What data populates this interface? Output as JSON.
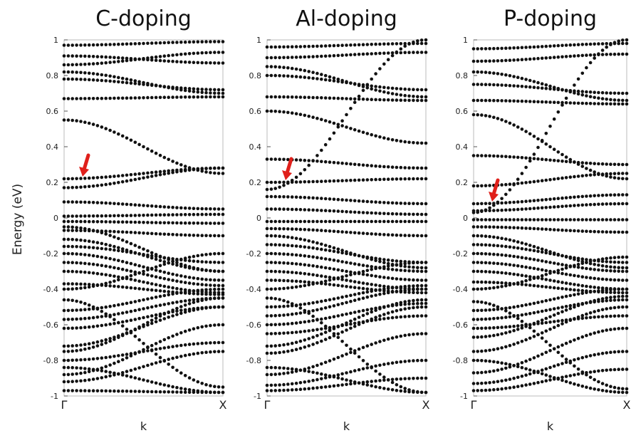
{
  "chart_data": {
    "type": "scatter",
    "ylabel": "Energy (eV)",
    "ylim": [
      -1,
      1
    ],
    "yticks": [
      "1",
      "0.8",
      "0.6",
      "0.4",
      "0.2",
      "0",
      "-0.2",
      "-0.4",
      "-0.6",
      "-0.8",
      "-1"
    ],
    "xlabel": "k",
    "xticks": [
      "Γ",
      "X"
    ],
    "marker_color": "#111111",
    "arrow_color": "#e0201b",
    "panels": [
      {
        "title": "C-doping",
        "arrow_energy": 0.24,
        "bands": [
          [
            -0.97,
            -0.98
          ],
          [
            -0.92,
            -0.75
          ],
          [
            -0.88,
            -0.6
          ],
          [
            -0.84,
            -0.98
          ],
          [
            -0.8,
            -0.7
          ],
          [
            -0.75,
            -0.45
          ],
          [
            -0.72,
            -0.5
          ],
          [
            -0.62,
            -0.5
          ],
          [
            -0.57,
            -0.45
          ],
          [
            -0.52,
            -0.4
          ],
          [
            -0.46,
            -0.95
          ],
          [
            -0.4,
            -0.2
          ],
          [
            -0.37,
            -0.43
          ],
          [
            -0.3,
            -0.42
          ],
          [
            -0.25,
            -0.38
          ],
          [
            -0.2,
            -0.35
          ],
          [
            -0.16,
            -0.25
          ],
          [
            -0.12,
            -0.3
          ],
          [
            -0.07,
            -0.1
          ],
          [
            -0.05,
            -0.3
          ],
          [
            -0.02,
            -0.03
          ],
          [
            0.01,
            0.02
          ],
          [
            0.09,
            0.05
          ],
          [
            0.17,
            0.28
          ],
          [
            0.22,
            0.28
          ],
          [
            0.55,
            0.25
          ],
          [
            0.67,
            0.68
          ],
          [
            0.78,
            0.72
          ],
          [
            0.82,
            0.7
          ],
          [
            0.86,
            0.93
          ],
          [
            0.91,
            0.87
          ],
          [
            0.97,
            0.99
          ]
        ]
      },
      {
        "title": "Al-doping",
        "arrow_energy": 0.22,
        "bands": [
          [
            -0.97,
            -0.9
          ],
          [
            -0.94,
            -0.8
          ],
          [
            -0.88,
            -0.65
          ],
          [
            -0.84,
            -0.98
          ],
          [
            -0.76,
            -0.5
          ],
          [
            -0.72,
            -0.46
          ],
          [
            -0.65,
            -0.55
          ],
          [
            -0.6,
            -0.48
          ],
          [
            -0.55,
            -0.4
          ],
          [
            -0.5,
            -0.38
          ],
          [
            -0.45,
            -0.98
          ],
          [
            -0.4,
            -0.25
          ],
          [
            -0.35,
            -0.42
          ],
          [
            -0.3,
            -0.4
          ],
          [
            -0.25,
            -0.35
          ],
          [
            -0.2,
            -0.3
          ],
          [
            -0.15,
            -0.25
          ],
          [
            -0.1,
            -0.28
          ],
          [
            -0.06,
            -0.1
          ],
          [
            -0.02,
            -0.02
          ],
          [
            0.05,
            0.02
          ],
          [
            0.12,
            0.08
          ],
          [
            0.16,
            1.0
          ],
          [
            0.2,
            0.22
          ],
          [
            0.33,
            0.28
          ],
          [
            0.6,
            0.42
          ],
          [
            0.68,
            0.66
          ],
          [
            0.8,
            0.72
          ],
          [
            0.85,
            0.68
          ],
          [
            0.9,
            0.93
          ],
          [
            0.96,
            0.98
          ]
        ]
      },
      {
        "title": "P-doping",
        "arrow_energy": 0.1,
        "bands": [
          [
            -0.97,
            -0.85
          ],
          [
            -0.93,
            -0.75
          ],
          [
            -0.87,
            -0.62
          ],
          [
            -0.8,
            -0.98
          ],
          [
            -0.75,
            -0.5
          ],
          [
            -0.67,
            -0.44
          ],
          [
            -0.62,
            -0.55
          ],
          [
            -0.57,
            -0.46
          ],
          [
            -0.52,
            -0.4
          ],
          [
            -0.47,
            -0.96
          ],
          [
            -0.4,
            -0.22
          ],
          [
            -0.36,
            -0.42
          ],
          [
            -0.3,
            -0.4
          ],
          [
            -0.25,
            -0.35
          ],
          [
            -0.2,
            -0.3
          ],
          [
            -0.15,
            -0.25
          ],
          [
            -0.1,
            -0.28
          ],
          [
            -0.05,
            -0.08
          ],
          [
            -0.01,
            -0.01
          ],
          [
            0.03,
            1.0
          ],
          [
            0.04,
            0.08
          ],
          [
            0.08,
            0.13
          ],
          [
            0.18,
            0.25
          ],
          [
            0.35,
            0.3
          ],
          [
            0.58,
            0.22
          ],
          [
            0.66,
            0.64
          ],
          [
            0.75,
            0.7
          ],
          [
            0.82,
            0.66
          ],
          [
            0.88,
            0.92
          ],
          [
            0.95,
            0.98
          ]
        ]
      }
    ]
  }
}
